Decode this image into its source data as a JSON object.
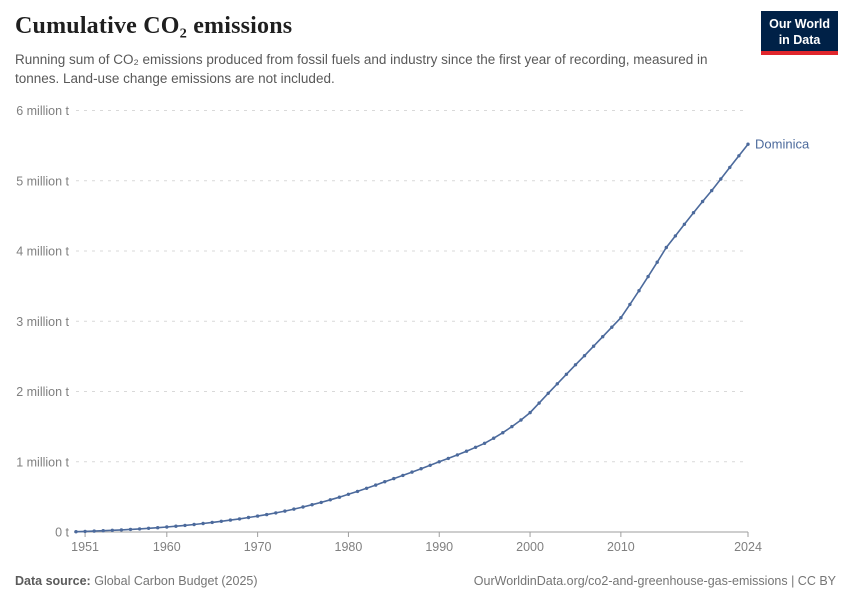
{
  "header": {
    "title": "Cumulative CO₂ emissions",
    "subtitle": "Running sum of CO₂ emissions produced from fossil fuels and industry since the first year of recording, measured in tonnes. Land-use change emissions are not included.",
    "logo": {
      "line1": "Our World",
      "line2": "in Data"
    }
  },
  "chart_data": {
    "type": "line",
    "title": "Cumulative CO₂ emissions",
    "xlabel": "",
    "ylabel": "",
    "x_range": [
      1950,
      2024
    ],
    "ylim": [
      0,
      6000000
    ],
    "grid": "horizontal-dashed",
    "legend_position": "end-of-line",
    "yticks": [
      {
        "value": 0,
        "label": "0 t"
      },
      {
        "value": 1000000,
        "label": "1 million t"
      },
      {
        "value": 2000000,
        "label": "2 million t"
      },
      {
        "value": 3000000,
        "label": "3 million t"
      },
      {
        "value": 4000000,
        "label": "4 million t"
      },
      {
        "value": 5000000,
        "label": "5 million t"
      },
      {
        "value": 6000000,
        "label": "6 million t"
      }
    ],
    "xticks": [
      1951,
      1960,
      1970,
      1980,
      1990,
      2000,
      2010,
      2024
    ],
    "series": [
      {
        "name": "Dominica",
        "color": "#4C6A9C",
        "marker": "dot",
        "x": [
          1950,
          1951,
          1952,
          1953,
          1954,
          1955,
          1956,
          1957,
          1958,
          1959,
          1960,
          1961,
          1962,
          1963,
          1964,
          1965,
          1966,
          1967,
          1968,
          1969,
          1970,
          1971,
          1972,
          1973,
          1974,
          1975,
          1976,
          1977,
          1978,
          1979,
          1980,
          1981,
          1982,
          1983,
          1984,
          1985,
          1986,
          1987,
          1988,
          1989,
          1990,
          1991,
          1992,
          1993,
          1994,
          1995,
          1996,
          1997,
          1998,
          1999,
          2000,
          2001,
          2002,
          2003,
          2004,
          2005,
          2006,
          2007,
          2008,
          2009,
          2010,
          2011,
          2012,
          2013,
          2014,
          2015,
          2016,
          2017,
          2018,
          2019,
          2020,
          2021,
          2022,
          2023,
          2024
        ],
        "values": [
          4000,
          8000,
          13000,
          18000,
          24000,
          30000,
          37000,
          44000,
          52000,
          61000,
          71000,
          82000,
          94000,
          107000,
          121000,
          136000,
          152000,
          169000,
          187000,
          206000,
          226000,
          248000,
          272000,
          298000,
          326000,
          356000,
          388000,
          422000,
          458000,
          496000,
          536000,
          578000,
          622000,
          668000,
          716000,
          760000,
          806000,
          853000,
          901000,
          950000,
          1000000,
          1048000,
          1098000,
          1150000,
          1205000,
          1262000,
          1335000,
          1413000,
          1500000,
          1595000,
          1700000,
          1835000,
          1975000,
          2110000,
          2245000,
          2380000,
          2510000,
          2645000,
          2780000,
          2915000,
          3050000,
          3240000,
          3435000,
          3635000,
          3840000,
          4050000,
          4215000,
          4380000,
          4545000,
          4705000,
          4860000,
          5025000,
          5190000,
          5355000,
          5520000
        ]
      }
    ]
  },
  "styles": {
    "grid_color": "#d9d9d9",
    "axis_color": "#9e9e9e",
    "tick_label_color": "#808080"
  },
  "footer": {
    "source_label": "Data source:",
    "source_value": "Global Carbon Budget (2025)",
    "attribution": "OurWorldinData.org/co2-and-greenhouse-gas-emissions | CC BY"
  }
}
